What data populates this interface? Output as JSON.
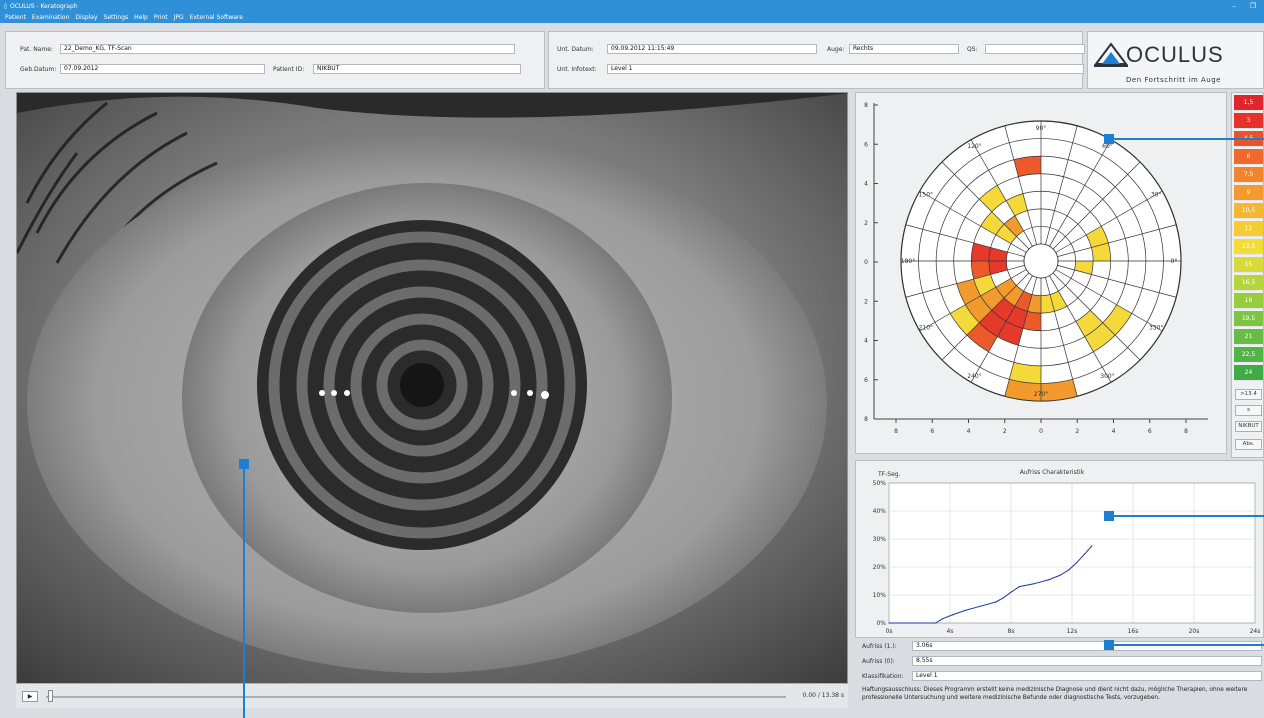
{
  "window": {
    "title": "OCULUS - Keratograph",
    "min_label": "–",
    "restore_label": "❐"
  },
  "menu": [
    "Patient",
    "Examination",
    "Display",
    "Settings",
    "Help",
    "Print",
    "JPG",
    "External Software"
  ],
  "patient": {
    "name_label": "Pat. Name:",
    "name_value": "22_Demo_KG, TF-Scan",
    "dob_label": "Geb.Datum:",
    "dob_value": "07.09.2012",
    "id_label": "Patient ID:",
    "id_value": "NIKBUT"
  },
  "exam": {
    "date_label": "Unt. Datum:",
    "date_value": "09.09.2012 11:15:49",
    "eye_label": "Auge:",
    "eye_value": "Rechts",
    "qs_label": "QS:",
    "qs_value": "",
    "info_label": "Unt. Infotext:",
    "info_value": "Level 1"
  },
  "logo": {
    "brand": "OCULUS",
    "tagline": "Den Fortschritt im Auge"
  },
  "player": {
    "play_label": "▶",
    "time": "0.00 / 13.38 s",
    "progress": 0.0
  },
  "polar": {
    "angle_labels": [
      "90°",
      "60°",
      "30°",
      "0°",
      "330°",
      "300°",
      "270°",
      "240°",
      "210°",
      "180°",
      "150°",
      "120°"
    ],
    "y_ticks": [
      "8",
      "6",
      "4",
      "2",
      "0",
      "2",
      "4",
      "6",
      "8"
    ],
    "x_ticks": [
      "8",
      "6",
      "4",
      "2",
      "0",
      "2",
      "4",
      "6",
      "8"
    ],
    "rings": 7,
    "sectors": 24,
    "cells": [
      {
        "ring": 4,
        "sector": 6,
        "color": "#ec5a2b"
      },
      {
        "ring": 2,
        "sector": 7,
        "color": "#f5d83a"
      },
      {
        "ring": 3,
        "sector": 8,
        "color": "#f5d83a"
      },
      {
        "ring": 2,
        "sector": 9,
        "color": "#f5d83a"
      },
      {
        "ring": 1,
        "sector": 8,
        "color": "#f29a2e"
      },
      {
        "ring": 1,
        "sector": 9,
        "color": "#f5d83a"
      },
      {
        "ring": 2,
        "sector": 1,
        "color": "#f5d83a"
      },
      {
        "ring": 2,
        "sector": 0,
        "color": "#f5d83a"
      },
      {
        "ring": 1,
        "sector": 11,
        "color": "#e5392b"
      },
      {
        "ring": 2,
        "sector": 11,
        "color": "#e5392b"
      },
      {
        "ring": 1,
        "sector": 12,
        "color": "#e5392b"
      },
      {
        "ring": 2,
        "sector": 12,
        "color": "#ec5a2b"
      },
      {
        "ring": 2,
        "sector": 13,
        "color": "#f5d83a"
      },
      {
        "ring": 3,
        "sector": 13,
        "color": "#f29a2e"
      },
      {
        "ring": 1,
        "sector": 14,
        "color": "#f29a2e"
      },
      {
        "ring": 2,
        "sector": 14,
        "color": "#f29a2e"
      },
      {
        "ring": 3,
        "sector": 14,
        "color": "#f29a2e"
      },
      {
        "ring": 4,
        "sector": 14,
        "color": "#f5d83a"
      },
      {
        "ring": 1,
        "sector": 15,
        "color": "#f29a2e"
      },
      {
        "ring": 2,
        "sector": 15,
        "color": "#e5392b"
      },
      {
        "ring": 3,
        "sector": 15,
        "color": "#e5392b"
      },
      {
        "ring": 4,
        "sector": 15,
        "color": "#ec5a2b"
      },
      {
        "ring": 5,
        "sector": 17,
        "color": "#f5d83a"
      },
      {
        "ring": 1,
        "sector": 16,
        "color": "#ec5a2b"
      },
      {
        "ring": 2,
        "sector": 16,
        "color": "#e5392b"
      },
      {
        "ring": 3,
        "sector": 16,
        "color": "#e5392b"
      },
      {
        "ring": 1,
        "sector": 17,
        "color": "#f29a2e"
      },
      {
        "ring": 2,
        "sector": 17,
        "color": "#ec5a2b"
      },
      {
        "ring": 1,
        "sector": 18,
        "color": "#f5d83a"
      },
      {
        "ring": 6,
        "sector": 17,
        "color": "#f29a2e"
      },
      {
        "ring": 6,
        "sector": 18,
        "color": "#f29a2e"
      },
      {
        "ring": 3,
        "sector": 20,
        "color": "#f5d83a"
      },
      {
        "ring": 4,
        "sector": 20,
        "color": "#f5d83a"
      },
      {
        "ring": 4,
        "sector": 21,
        "color": "#f5d83a"
      },
      {
        "ring": 1,
        "sector": 19,
        "color": "#f5d83a"
      },
      {
        "ring": 1,
        "sector": 23,
        "color": "#f5d83a"
      }
    ]
  },
  "scale": {
    "entries": [
      {
        "label": "1,5",
        "color": "#e0262b"
      },
      {
        "label": "3",
        "color": "#e4332b"
      },
      {
        "label": "4,5",
        "color": "#e9522b"
      },
      {
        "label": "6",
        "color": "#ed6a2c"
      },
      {
        "label": "7,5",
        "color": "#f0852e"
      },
      {
        "label": "9",
        "color": "#f39b2f"
      },
      {
        "label": "10,5",
        "color": "#f5b631"
      },
      {
        "label": "12",
        "color": "#f6cc34"
      },
      {
        "label": "13,5",
        "color": "#f2dc36"
      },
      {
        "label": "15",
        "color": "#d5dc3a"
      },
      {
        "label": "16,5",
        "color": "#b6d53c"
      },
      {
        "label": "18",
        "color": "#96cc3e"
      },
      {
        "label": "19,5",
        "color": "#7cc442"
      },
      {
        "label": "21",
        "color": "#66bc44"
      },
      {
        "label": "22,5",
        "color": "#52b445"
      },
      {
        "label": "24",
        "color": "#40ab45"
      }
    ],
    "btn_gt": ">13.4",
    "btn_s": "s",
    "btn_nikbut": "NIKBUT",
    "btn_abs": "Abs."
  },
  "chart_data": {
    "type": "line",
    "title": "Aufriss Charakteristik",
    "ylabel": "TF-Seg.",
    "xlabel": "",
    "x_ticks": [
      "0s",
      "4s",
      "8s",
      "12s",
      "16s",
      "20s",
      "24s"
    ],
    "y_ticks": [
      "0%",
      "10%",
      "20%",
      "30%",
      "40%",
      "50%"
    ],
    "xlim": [
      0,
      24
    ],
    "ylim": [
      0,
      50
    ],
    "grid": true,
    "series": [
      {
        "color": "#2233aa",
        "x": [
          0,
          3.06,
          3.5,
          4.2,
          5.0,
          6.0,
          7.0,
          7.5,
          8.0,
          8.55,
          9.5,
          10.5,
          11.2,
          11.8,
          12.3,
          12.8,
          13.3
        ],
        "y": [
          0,
          0,
          1.5,
          3.0,
          4.5,
          6.0,
          7.5,
          9.0,
          11.0,
          13.0,
          14.0,
          15.5,
          17.0,
          19.0,
          21.5,
          24.5,
          27.5
        ]
      }
    ]
  },
  "results": {
    "aufriss1_label": "Aufriss (1.):",
    "aufriss1_value": "3.06s",
    "aufriss0_label": "Aufriss (0):",
    "aufriss0_value": "8.55s",
    "klass_label": "Klassifikation:",
    "klass_value": "Level 1",
    "disclaimer": "Haftungsausschluss: Dieses Programm erstellt keine medizinische Diagnose und dient nicht dazu, mögliche Therapien, ohne weitere professionelle Untersuchung und weitere medizinische Befunde oder diagnostische Tests, vorzugeben."
  }
}
